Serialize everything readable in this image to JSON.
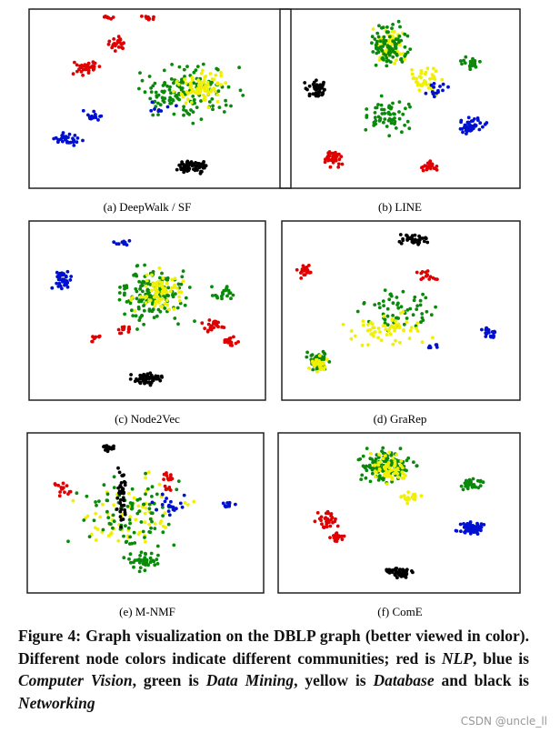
{
  "figure": {
    "panels": [
      {
        "label": "(a) DeepWalk / SF"
      },
      {
        "label": "(b) LINE"
      },
      {
        "label": "(c) Node2Vec"
      },
      {
        "label": "(d) GraRep"
      },
      {
        "label": "(e) M-NMF"
      },
      {
        "label": "(f) ComE"
      }
    ],
    "caption": {
      "parts": [
        "Figure 4: Graph visualization on the DBLP graph (better viewed in color). Different node colors indicate different communities; red is ",
        "NLP",
        ", blue is ",
        "Computer Vision",
        ", green is ",
        "Data Mining",
        ", yellow is ",
        "Database",
        " and black is ",
        "Networking"
      ]
    }
  },
  "watermark": "CSDN @uncle_ll"
}
